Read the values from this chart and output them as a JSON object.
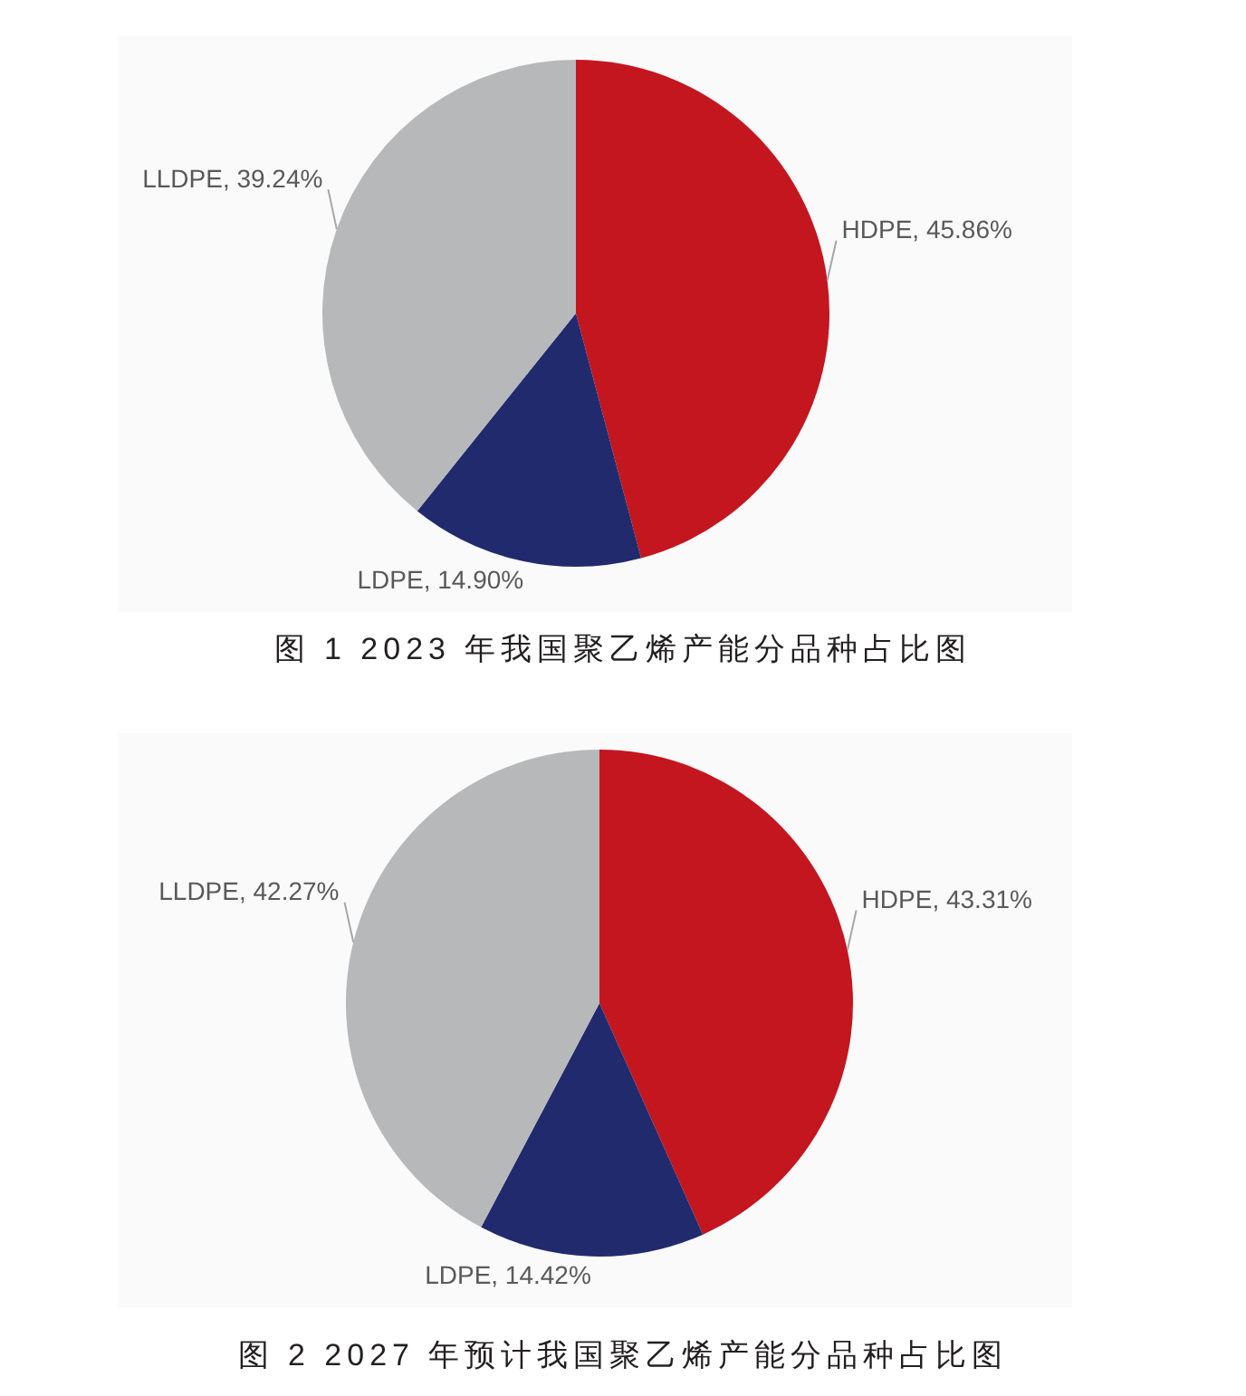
{
  "chart_data": [
    {
      "type": "pie",
      "title": "图 1  2023 年我国聚乙烯产能分品种占比图",
      "categories": [
        "HDPE",
        "LDPE",
        "LLDPE"
      ],
      "values": [
        45.86,
        14.9,
        39.24
      ],
      "colors": [
        "#c3161f",
        "#222a6e",
        "#b7b8ba"
      ],
      "value_labels": [
        "45.86%",
        "14.90%",
        "39.24%"
      ]
    },
    {
      "type": "pie",
      "title": "图 2  2027 年预计我国聚乙烯产能分品种占比图",
      "categories": [
        "HDPE",
        "LDPE",
        "LLDPE"
      ],
      "values": [
        43.31,
        14.42,
        42.27
      ],
      "colors": [
        "#c3161f",
        "#222a6e",
        "#b7b8ba"
      ],
      "value_labels": [
        "43.31%",
        "14.42%",
        "42.27%"
      ]
    }
  ]
}
